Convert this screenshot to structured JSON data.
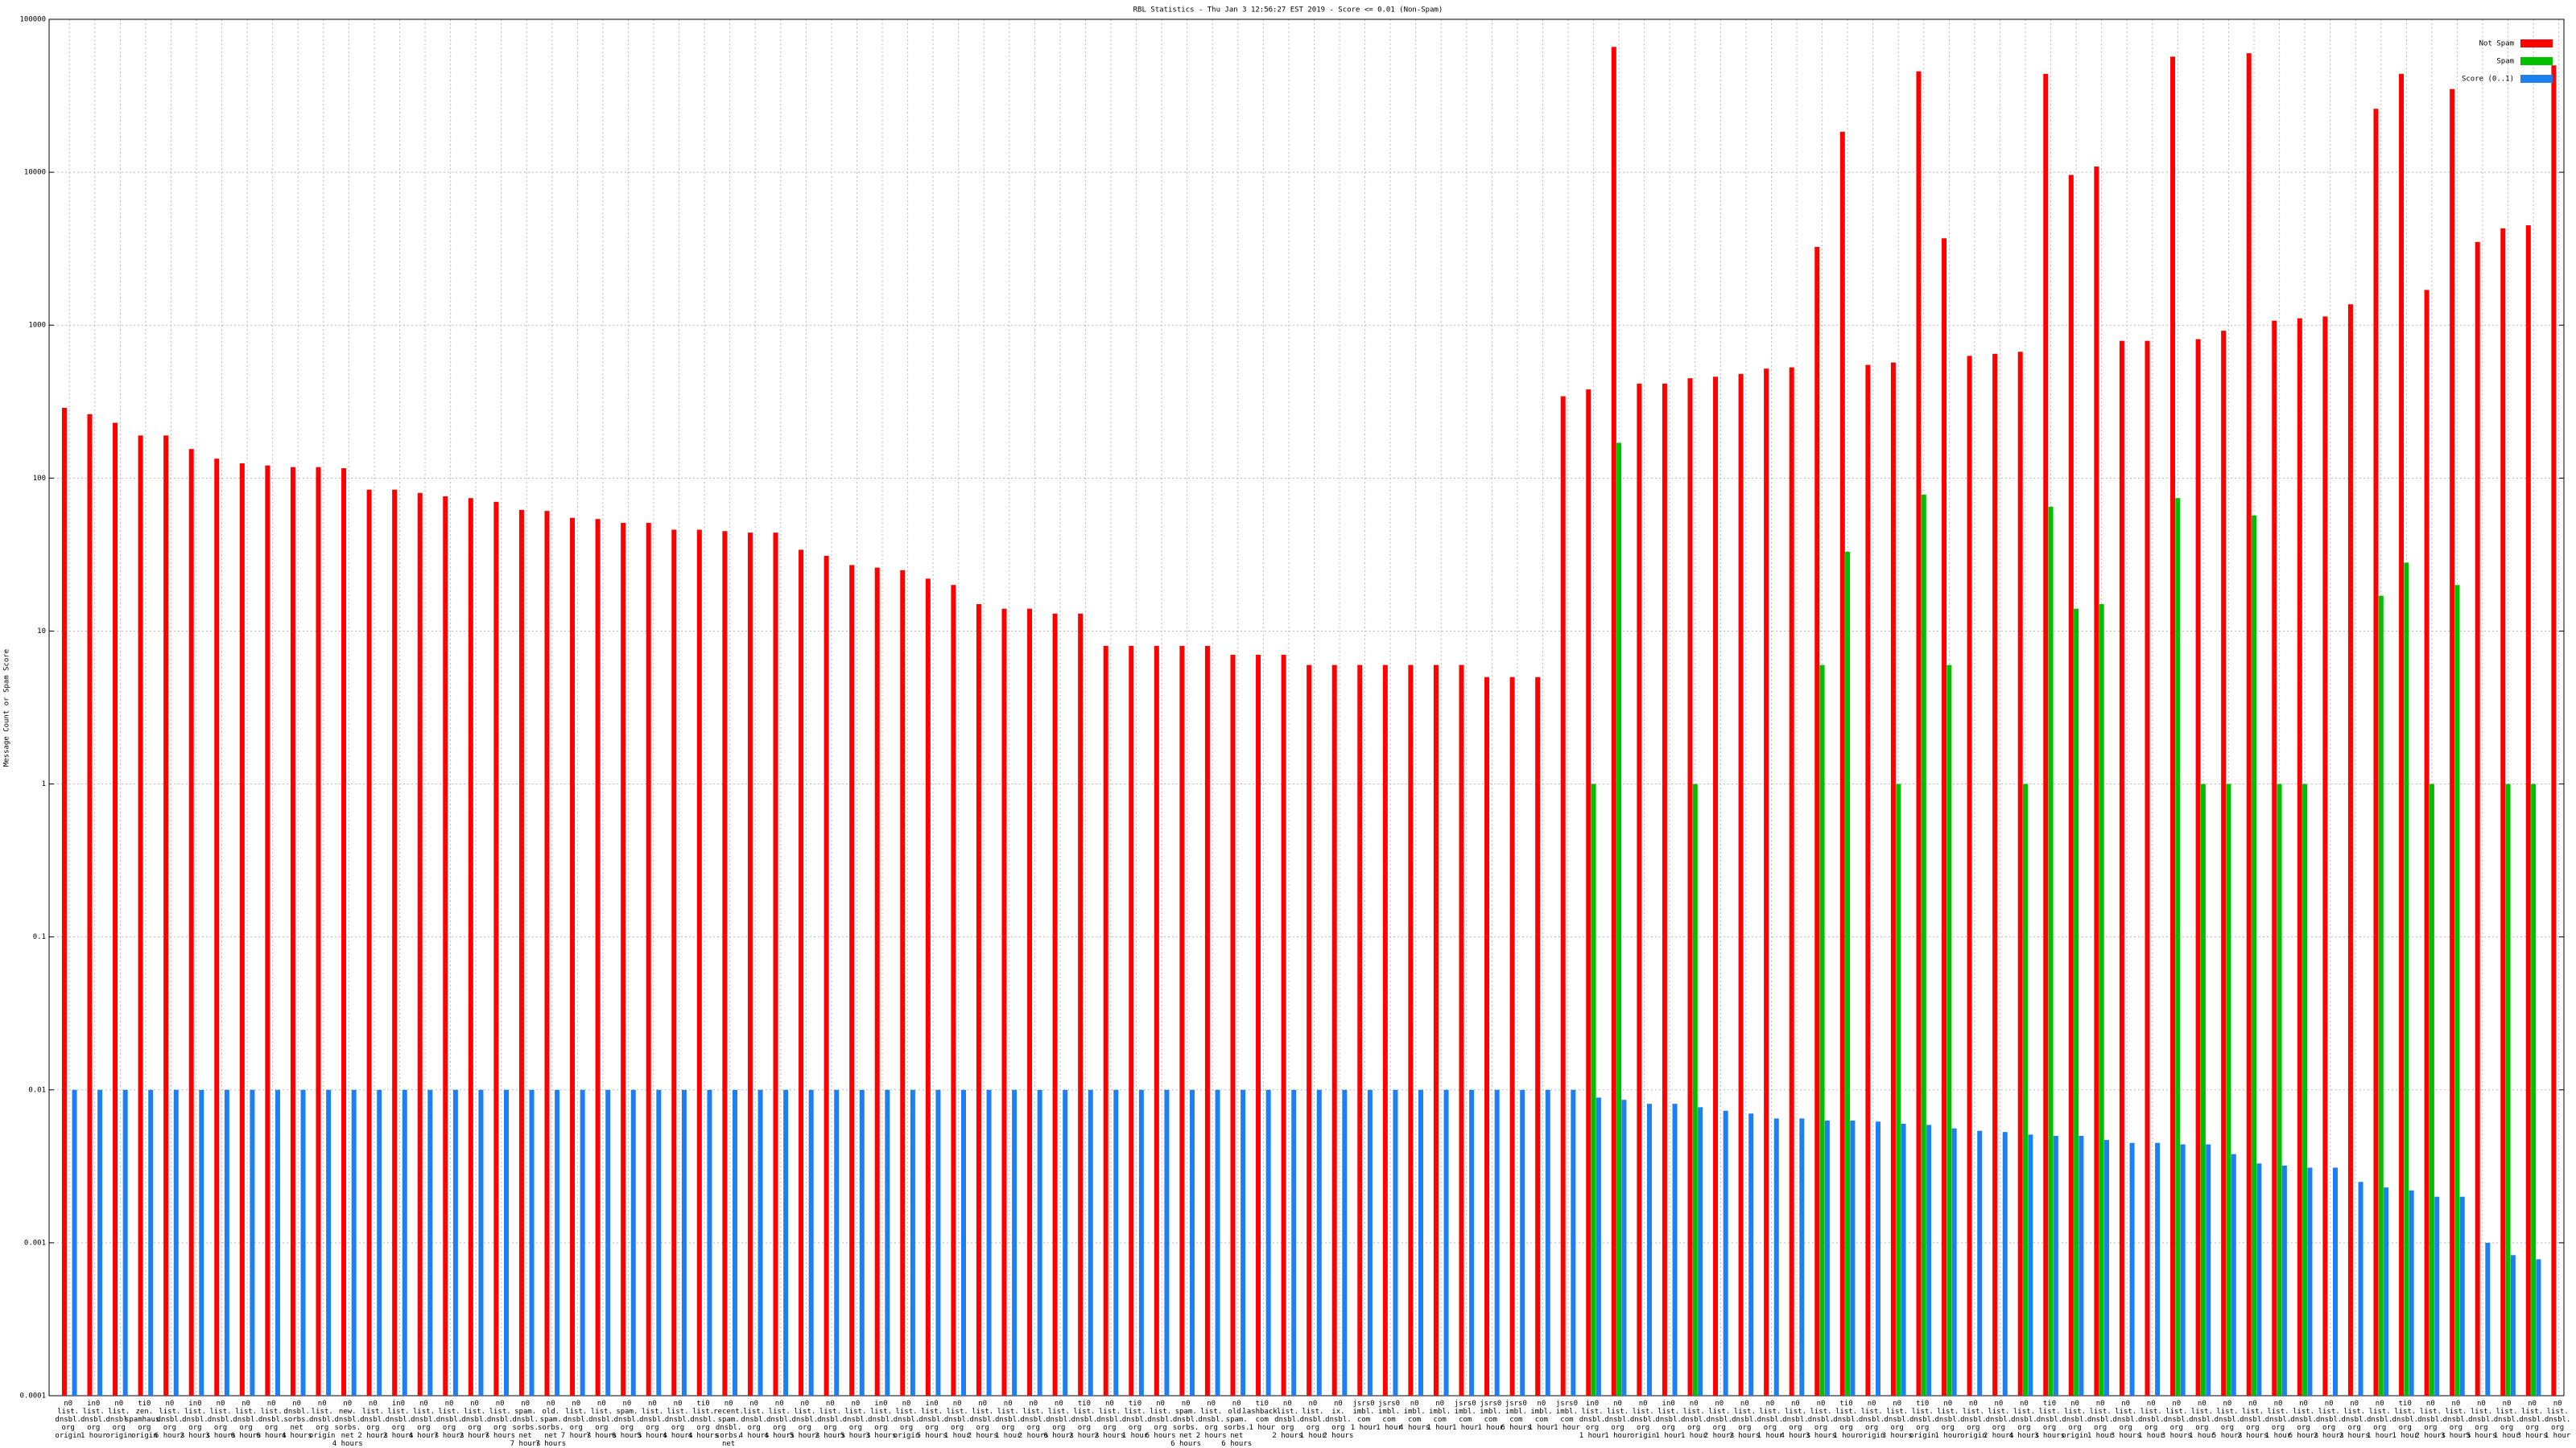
{
  "chart_data": {
    "type": "bar",
    "title": "RBL Statistics - Thu Jan  3 12:56:27 EST 2019 - Score <= 0.01 (Non-Spam)",
    "y_label": "Message Count or Spam Score",
    "log_scale": true,
    "grid": true,
    "legend_position": "top-right",
    "ylim": [
      0.0001,
      100000
    ],
    "yticks": [
      0.0001,
      0.001,
      0.01,
      0.1,
      1,
      10,
      100,
      1000,
      10000,
      100000
    ],
    "categories": [
      "n0 list. dnsbl. org origin",
      "in0 list. dnsbl. org 1 hour",
      "n0 list. dnsbl. org origin",
      "ti0 zen. spamhaus. org origin",
      "n0 list. dnsbl. org 6 hours",
      "in0 list. dnsbl. org 2 hours",
      "n0 list. dnsbl. org 3 hours",
      "n0 list. dnsbl. org 6 hours",
      "n0 list. dnsbl. org 6 hours",
      "n0 dnsbl. sorbs. net 4 hours",
      "n0 list. dnsbl. org origin",
      "n0 new. dnsbl. sorbs. net 4 hours",
      "n0 list. dnsbl. org 2 hours",
      "in0 list. dnsbl. org 2 hours",
      "n0 list. dnsbl. org 4 hours",
      "n0 list. dnsbl. org 7 hours",
      "n0 list. dnsbl. org 2 hours",
      "n0 list. dnsbl. org 7 hours",
      "n0 spam. dnsbl. sorbs. net 7 hours",
      "n0 old. spam. sorbs. net 7 hours",
      "n0 list. dnsbl. org 7 hours",
      "n0 list. dnsbl. org 7 hours",
      "n0 spam. dnsbl. org 6 hours",
      "n0 list. dnsbl. org 5 hours",
      "n0 list. dnsbl. org 4 hours",
      "ti0 list. dnsbl. org 4 hours",
      "n0 recent. spam. dnsbl. sorbs. net 7 hours",
      "n0 list. dnsbl. org 4 hours",
      "n0 list. dnsbl. org 4 hours",
      "n0 list. dnsbl. org 5 hours",
      "n0 list. dnsbl. org 2 hours",
      "n0 list. dnsbl. org 5 hours",
      "in0 list. dnsbl. org 3 hours",
      "n0 list. dnsbl. org origin",
      "in0 list. dnsbl. org 5 hours",
      "n0 list. dnsbl. org 1 hour",
      "n0 list. dnsbl. org 2 hours",
      "n0 list. dnsbl. org 1 hour",
      "n0 list. dnsbl. org 2 hours",
      "n0 list. dnsbl. org 6 hours",
      "ti0 list. dnsbl. org 2 hours",
      "n0 list. dnsbl. org 2 hours",
      "ti0 list. dnsbl. org 1 hour",
      "n0 list. dnsbl. org 6 hours",
      "n0 spam. dnsbl. sorbs. net 6 hours",
      "n0 list. dnsbl. org 2 hours",
      "n0 old. spam. sorbs. net 6 hours",
      "ti0 lashback. com 1 hour",
      "n0 list. dnsbl. org 2 hours",
      "n0 list. dnsbl. org 1 hour",
      "n0 ix. dnsbl. org 2 hours",
      "jsrs0 imbl. com 1 hour",
      "jsrs0 imbl. com 1 hour",
      "n0 imbl. com 4 hours",
      "n0 imbl. com 1 hour",
      "jsrs0 imbl. com 1 hour",
      "jsrs0 imbl. com 1 hour",
      "jsrs0 imbl. com 6 hours",
      "n0 imbl. com 1 hour",
      "jsrs0 imbl. com 1 hour",
      "in0 list. dnsbl. org 1 hour",
      "n0 list. dnsbl. org 1 hour",
      "n0 list. dnsbl. org origin",
      "in0 list. dnsbl. org 1 hour",
      "n0 list. dnsbl. org 1 hour",
      "n0 list. dnsbl. org 2 hours",
      "n0 list. dnsbl. org 2 hours",
      "n0 list. dnsbl. org 1 hour",
      "n0 list. dnsbl. org 4 hours",
      "n0 list. dnsbl. org 3 hours",
      "ti0 list. dnsbl. org 1 hour",
      "n0 list. dnsbl. org origin",
      "n0 list. dnsbl. org 3 hours",
      "ti0 list. dnsbl. org origin",
      "n0 list. dnsbl. org 1 hour",
      "n0 list. dnsbl. org origin",
      "n0 list. dnsbl. org 2 hours",
      "n0 list. dnsbl. org 4 hours",
      "ti0 list. dnsbl. org 3 hours",
      "n0 list. dnsbl. org origin",
      "n0 list. dnsbl. org 1 hour",
      "n0 list. dnsbl. org 3 hours",
      "n0 list. dnsbl. org 1 hour",
      "n0 list. dnsbl. org 3 hours",
      "n0 list. dnsbl. org 1 hour",
      "n0 list. dnsbl. org 5 hours",
      "n0 list. dnsbl. org 2 hours",
      "n0 list. dnsbl. org 1 hour",
      "n0 list. dnsbl. org 6 hours",
      "n0 list. dnsbl. org 2 hours",
      "n0 list. dnsbl. org 2 hours",
      "n0 list. dnsbl. org 1 hour",
      "ti0 list. dnsbl. org 1 hour",
      "n0 list. dnsbl. org 2 hours",
      "n0 list. dnsbl. org 3 hours",
      "n0 list. dnsbl. org 5 hours",
      "n0 list. dnsbl. org 1 hour",
      "n0 list. dnsbl. org 3 hours",
      "n0 list. dnsbl. org 1 hour"
    ],
    "series": [
      {
        "name": "Not Spam",
        "color": "#ff0000",
        "values": [
          288,
          262,
          230,
          190,
          190,
          155,
          134,
          125,
          121,
          118,
          118,
          116,
          84,
          84,
          80,
          76,
          74,
          70,
          62,
          61,
          55,
          54,
          51,
          51,
          46,
          46,
          45,
          44,
          44,
          34,
          31,
          27,
          26,
          25,
          22,
          20,
          15,
          14,
          14,
          13,
          13,
          8,
          8,
          8,
          8,
          8,
          7,
          7,
          7,
          6,
          6,
          6,
          6,
          6,
          6,
          6,
          5,
          5,
          5,
          343,
          380,
          66000,
          415,
          415,
          450,
          460,
          480,
          520,
          530,
          3250,
          18400,
          550,
          570,
          45700,
          3700,
          630,
          650,
          670,
          44000,
          9600,
          10900,
          790,
          790,
          57000,
          810,
          920,
          60000,
          1070,
          1110,
          1140,
          1370,
          26000,
          44000,
          1700,
          35000,
          3500,
          4300,
          4500,
          50000
        ]
      },
      {
        "name": "Spam",
        "color": "#00c000",
        "values": [
          null,
          null,
          null,
          null,
          null,
          null,
          null,
          null,
          null,
          null,
          null,
          null,
          null,
          null,
          null,
          null,
          null,
          null,
          null,
          null,
          null,
          null,
          null,
          null,
          null,
          null,
          null,
          null,
          null,
          null,
          null,
          null,
          null,
          null,
          null,
          null,
          null,
          null,
          null,
          null,
          null,
          null,
          null,
          null,
          null,
          null,
          null,
          null,
          null,
          null,
          null,
          null,
          null,
          null,
          null,
          null,
          null,
          null,
          null,
          null,
          1,
          170,
          null,
          null,
          1,
          null,
          null,
          null,
          null,
          6,
          33,
          null,
          1,
          78,
          6,
          null,
          null,
          1,
          65,
          14,
          15,
          null,
          null,
          74,
          1,
          1,
          57,
          1,
          1,
          null,
          null,
          17,
          28,
          1,
          20,
          null,
          1,
          1,
          null
        ]
      },
      {
        "name": "Score (0..1)",
        "color": "#1e7ff0",
        "values": [
          0.01,
          0.01,
          0.01,
          0.01,
          0.01,
          0.01,
          0.01,
          0.01,
          0.01,
          0.01,
          0.01,
          0.01,
          0.01,
          0.01,
          0.01,
          0.01,
          0.01,
          0.01,
          0.01,
          0.01,
          0.01,
          0.01,
          0.01,
          0.01,
          0.01,
          0.01,
          0.01,
          0.01,
          0.01,
          0.01,
          0.01,
          0.01,
          0.01,
          0.01,
          0.01,
          0.01,
          0.01,
          0.01,
          0.01,
          0.01,
          0.01,
          0.01,
          0.01,
          0.01,
          0.01,
          0.01,
          0.01,
          0.01,
          0.01,
          0.01,
          0.01,
          0.01,
          0.01,
          0.01,
          0.01,
          0.01,
          0.01,
          0.01,
          0.01,
          0.01,
          0.0089,
          0.0086,
          0.0081,
          0.0081,
          0.0077,
          0.0073,
          0.007,
          0.0065,
          0.0065,
          0.0063,
          0.0063,
          0.0062,
          0.006,
          0.0059,
          0.0056,
          0.0054,
          0.0053,
          0.0051,
          0.005,
          0.005,
          0.0047,
          0.0045,
          0.0045,
          0.0044,
          0.0044,
          0.0038,
          0.0033,
          0.0032,
          0.0031,
          0.0031,
          0.0025,
          0.0023,
          0.0022,
          0.002,
          0.002,
          0.001,
          0.00083,
          0.00078,
          null
        ]
      }
    ]
  }
}
